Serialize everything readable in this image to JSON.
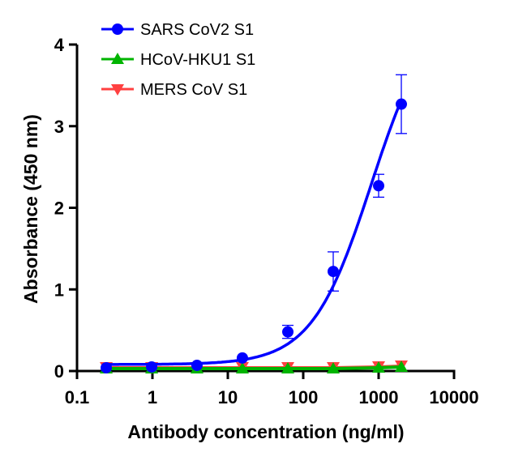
{
  "chart_data": {
    "type": "scatter",
    "title": "",
    "xlabel": "Antibody concentration (ng/ml)",
    "ylabel": "Absorbance (450 nm)",
    "xscale": "log",
    "xlim": [
      0.1,
      10000
    ],
    "ylim": [
      0,
      4
    ],
    "xticks": [
      "0.1",
      "1",
      "10",
      "100",
      "1000",
      "10000"
    ],
    "yticks": [
      "0",
      "1",
      "2",
      "3",
      "4"
    ],
    "grid": false,
    "legend_position": "top-left",
    "x": [
      0.244,
      0.977,
      3.9,
      15.6,
      62.5,
      250,
      1000,
      2000
    ],
    "series": [
      {
        "name": "SARS CoV2 S1",
        "color": "#0000ff",
        "marker": "circle",
        "fit": "sigmoidal curve",
        "values": [
          0.04,
          0.05,
          0.07,
          0.16,
          0.48,
          1.22,
          2.27,
          3.27
        ],
        "error": [
          0,
          0,
          0,
          0,
          0.08,
          0.24,
          0.14,
          0.36
        ]
      },
      {
        "name": "HCoV-HKU1 S1",
        "color": "#00b400",
        "marker": "triangle-up",
        "values": [
          0.03,
          0.03,
          0.03,
          0.03,
          0.03,
          0.03,
          0.04,
          0.05
        ]
      },
      {
        "name": "MERS CoV S1",
        "color": "#ff4040",
        "marker": "triangle-down",
        "values": [
          0.05,
          0.05,
          0.05,
          0.05,
          0.05,
          0.05,
          0.06,
          0.07
        ]
      }
    ]
  }
}
